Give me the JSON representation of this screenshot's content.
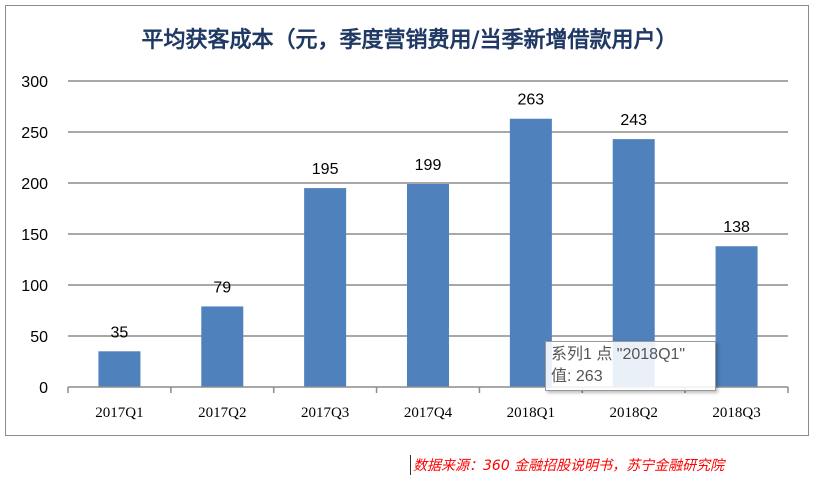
{
  "chart_data": {
    "type": "bar",
    "title": "平均获客成本（元，季度营销费用/当季新增借款用户）",
    "categories": [
      "2017Q1",
      "2017Q2",
      "2017Q3",
      "2017Q4",
      "2018Q1",
      "2018Q2",
      "2018Q3"
    ],
    "values": [
      35,
      79,
      195,
      199,
      263,
      243,
      138
    ],
    "yticks": [
      "0",
      "50",
      "100",
      "150",
      "200",
      "250",
      "300"
    ],
    "ylim": [
      0,
      300
    ],
    "xlabel": "",
    "ylabel": "",
    "grid": true,
    "bar_color": "#4f81bd"
  },
  "tooltip": {
    "line1": "系列1 点 \"2018Q1\"",
    "line2": "值: 263"
  },
  "source": "数据来源：360 金融招股说明书，苏宁金融研究院"
}
